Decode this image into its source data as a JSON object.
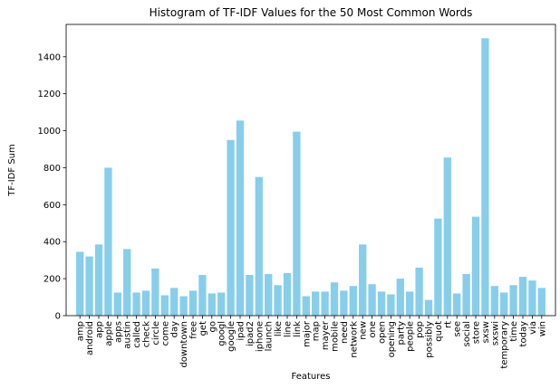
{
  "chart_data": {
    "type": "bar",
    "title": "Histogram of TF-IDF Values for the 50 Most Common Words",
    "xlabel": "Features",
    "ylabel": "TF-IDF Sum",
    "ylim": [
      0,
      1575
    ],
    "yticks": [
      0,
      200,
      400,
      600,
      800,
      1000,
      1200,
      1400
    ],
    "grid": false,
    "bar_color": "#87ceeb",
    "categories": [
      "amp",
      "android",
      "app",
      "apple",
      "apps",
      "austin",
      "called",
      "check",
      "circle",
      "come",
      "day",
      "downtown",
      "free",
      "get",
      "go",
      "googl",
      "google",
      "ipad",
      "ipad2",
      "iphone",
      "launch",
      "like",
      "line",
      "link",
      "major",
      "map",
      "mayer",
      "mobile",
      "need",
      "network",
      "new",
      "one",
      "open",
      "opening",
      "party",
      "people",
      "pop",
      "possibly",
      "quot",
      "rt",
      "see",
      "social",
      "store",
      "sxsw",
      "sxswi",
      "temporary",
      "time",
      "today",
      "via",
      "win"
    ],
    "values": [
      345,
      320,
      385,
      800,
      125,
      360,
      125,
      135,
      255,
      110,
      150,
      105,
      135,
      220,
      120,
      125,
      950,
      1055,
      220,
      750,
      225,
      165,
      230,
      995,
      105,
      130,
      130,
      180,
      135,
      160,
      385,
      170,
      130,
      115,
      200,
      130,
      260,
      85,
      525,
      855,
      120,
      225,
      535,
      1500,
      160,
      125,
      165,
      210,
      190,
      150
    ]
  }
}
